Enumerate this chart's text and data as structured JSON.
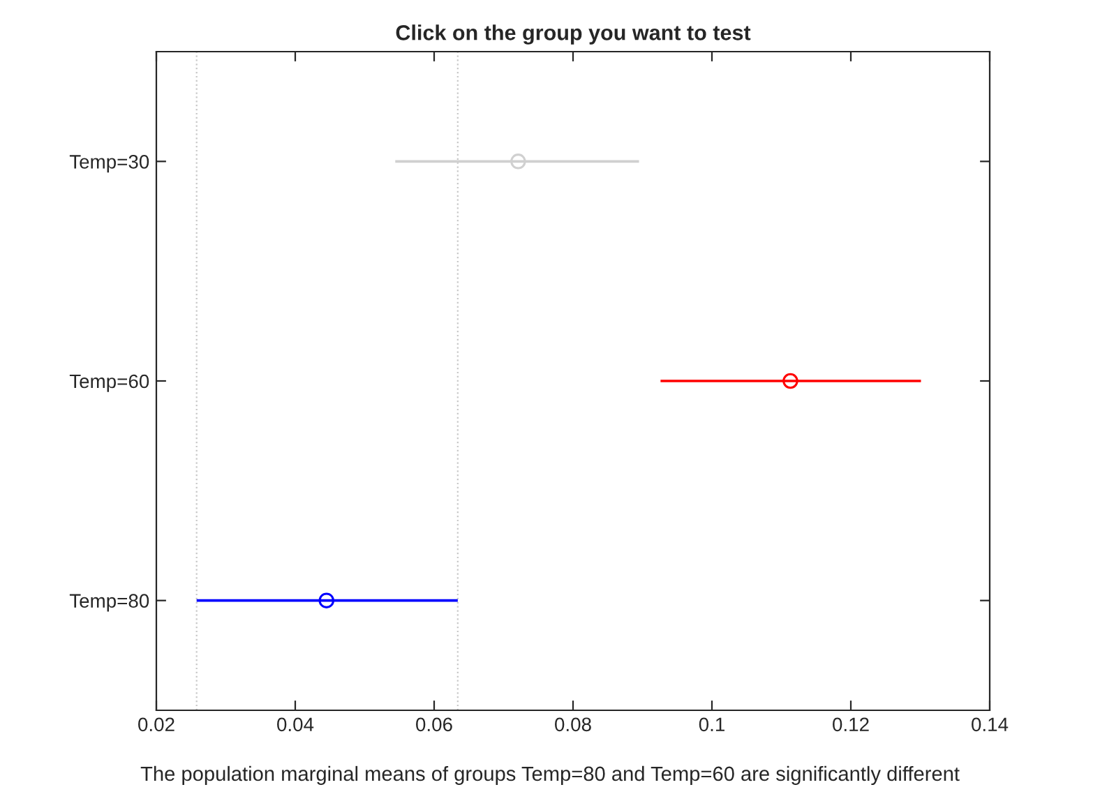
{
  "chart_data": {
    "type": "scatter",
    "orientation": "horizontal",
    "title": "Click on the group you want to test",
    "xlabel": "The population marginal means of groups Temp=80 and Temp=60 are significantly different",
    "categories": [
      "Temp=30",
      "Temp=60",
      "Temp=80"
    ],
    "values": [
      0.0721,
      0.1113,
      0.0445
    ],
    "errors": [
      [
        0.0544,
        0.0895
      ],
      [
        0.0926,
        0.1301
      ],
      [
        0.0258,
        0.0634
      ]
    ],
    "colors": [
      "#d0d0d0",
      "#ff0000",
      "#0000ff"
    ],
    "xlim": [
      0.02,
      0.14
    ],
    "xticks": [
      0.02,
      0.04,
      0.06,
      0.08,
      0.1,
      0.12,
      0.14
    ],
    "marker": "circle",
    "grid": false,
    "legend": false,
    "ref_lines": [
      {
        "axis": "x",
        "value": 0.0258,
        "color": "#c8c8c8",
        "line_style": "dotted"
      },
      {
        "axis": "x",
        "value": 0.0634,
        "color": "#c8c8c8",
        "line_style": "dotted"
      }
    ]
  }
}
